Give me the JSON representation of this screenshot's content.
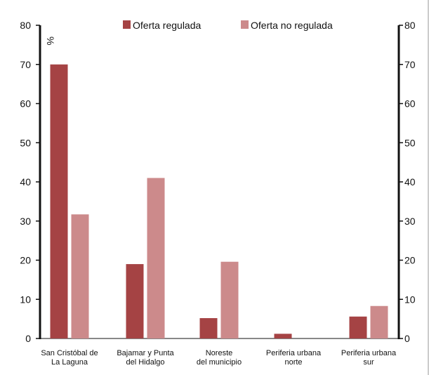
{
  "chart_data": {
    "type": "bar",
    "unit_label": "%",
    "categories": [
      [
        "San Cristóbal de",
        "La Laguna"
      ],
      [
        "Bajamar y Punta",
        "del Hidalgo"
      ],
      [
        "Noreste",
        "del municipio"
      ],
      [
        "Periferia urbana",
        "norte"
      ],
      [
        "Periferia urbana",
        "sur"
      ]
    ],
    "series": [
      {
        "name": "Oferta regulada",
        "color": "#a54344",
        "values": [
          70,
          19,
          5.2,
          1.2,
          5.6
        ]
      },
      {
        "name": "Oferta no regulada",
        "color": "#cc8a8b",
        "values": [
          31.7,
          41,
          19.6,
          0,
          8.3
        ]
      }
    ],
    "ylim": [
      0,
      80
    ],
    "yticks": [
      0,
      10,
      20,
      30,
      40,
      50,
      60,
      70,
      80
    ],
    "legend_position": "top",
    "grid": false
  }
}
